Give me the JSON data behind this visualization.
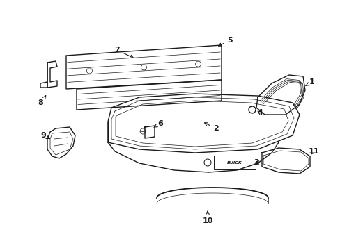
{
  "background_color": "#ffffff",
  "line_color": "#1a1a1a",
  "figsize": [
    4.89,
    3.6
  ],
  "dpi": 100,
  "lw_main": 1.0,
  "lw_thin": 0.5,
  "lw_detail": 0.6
}
